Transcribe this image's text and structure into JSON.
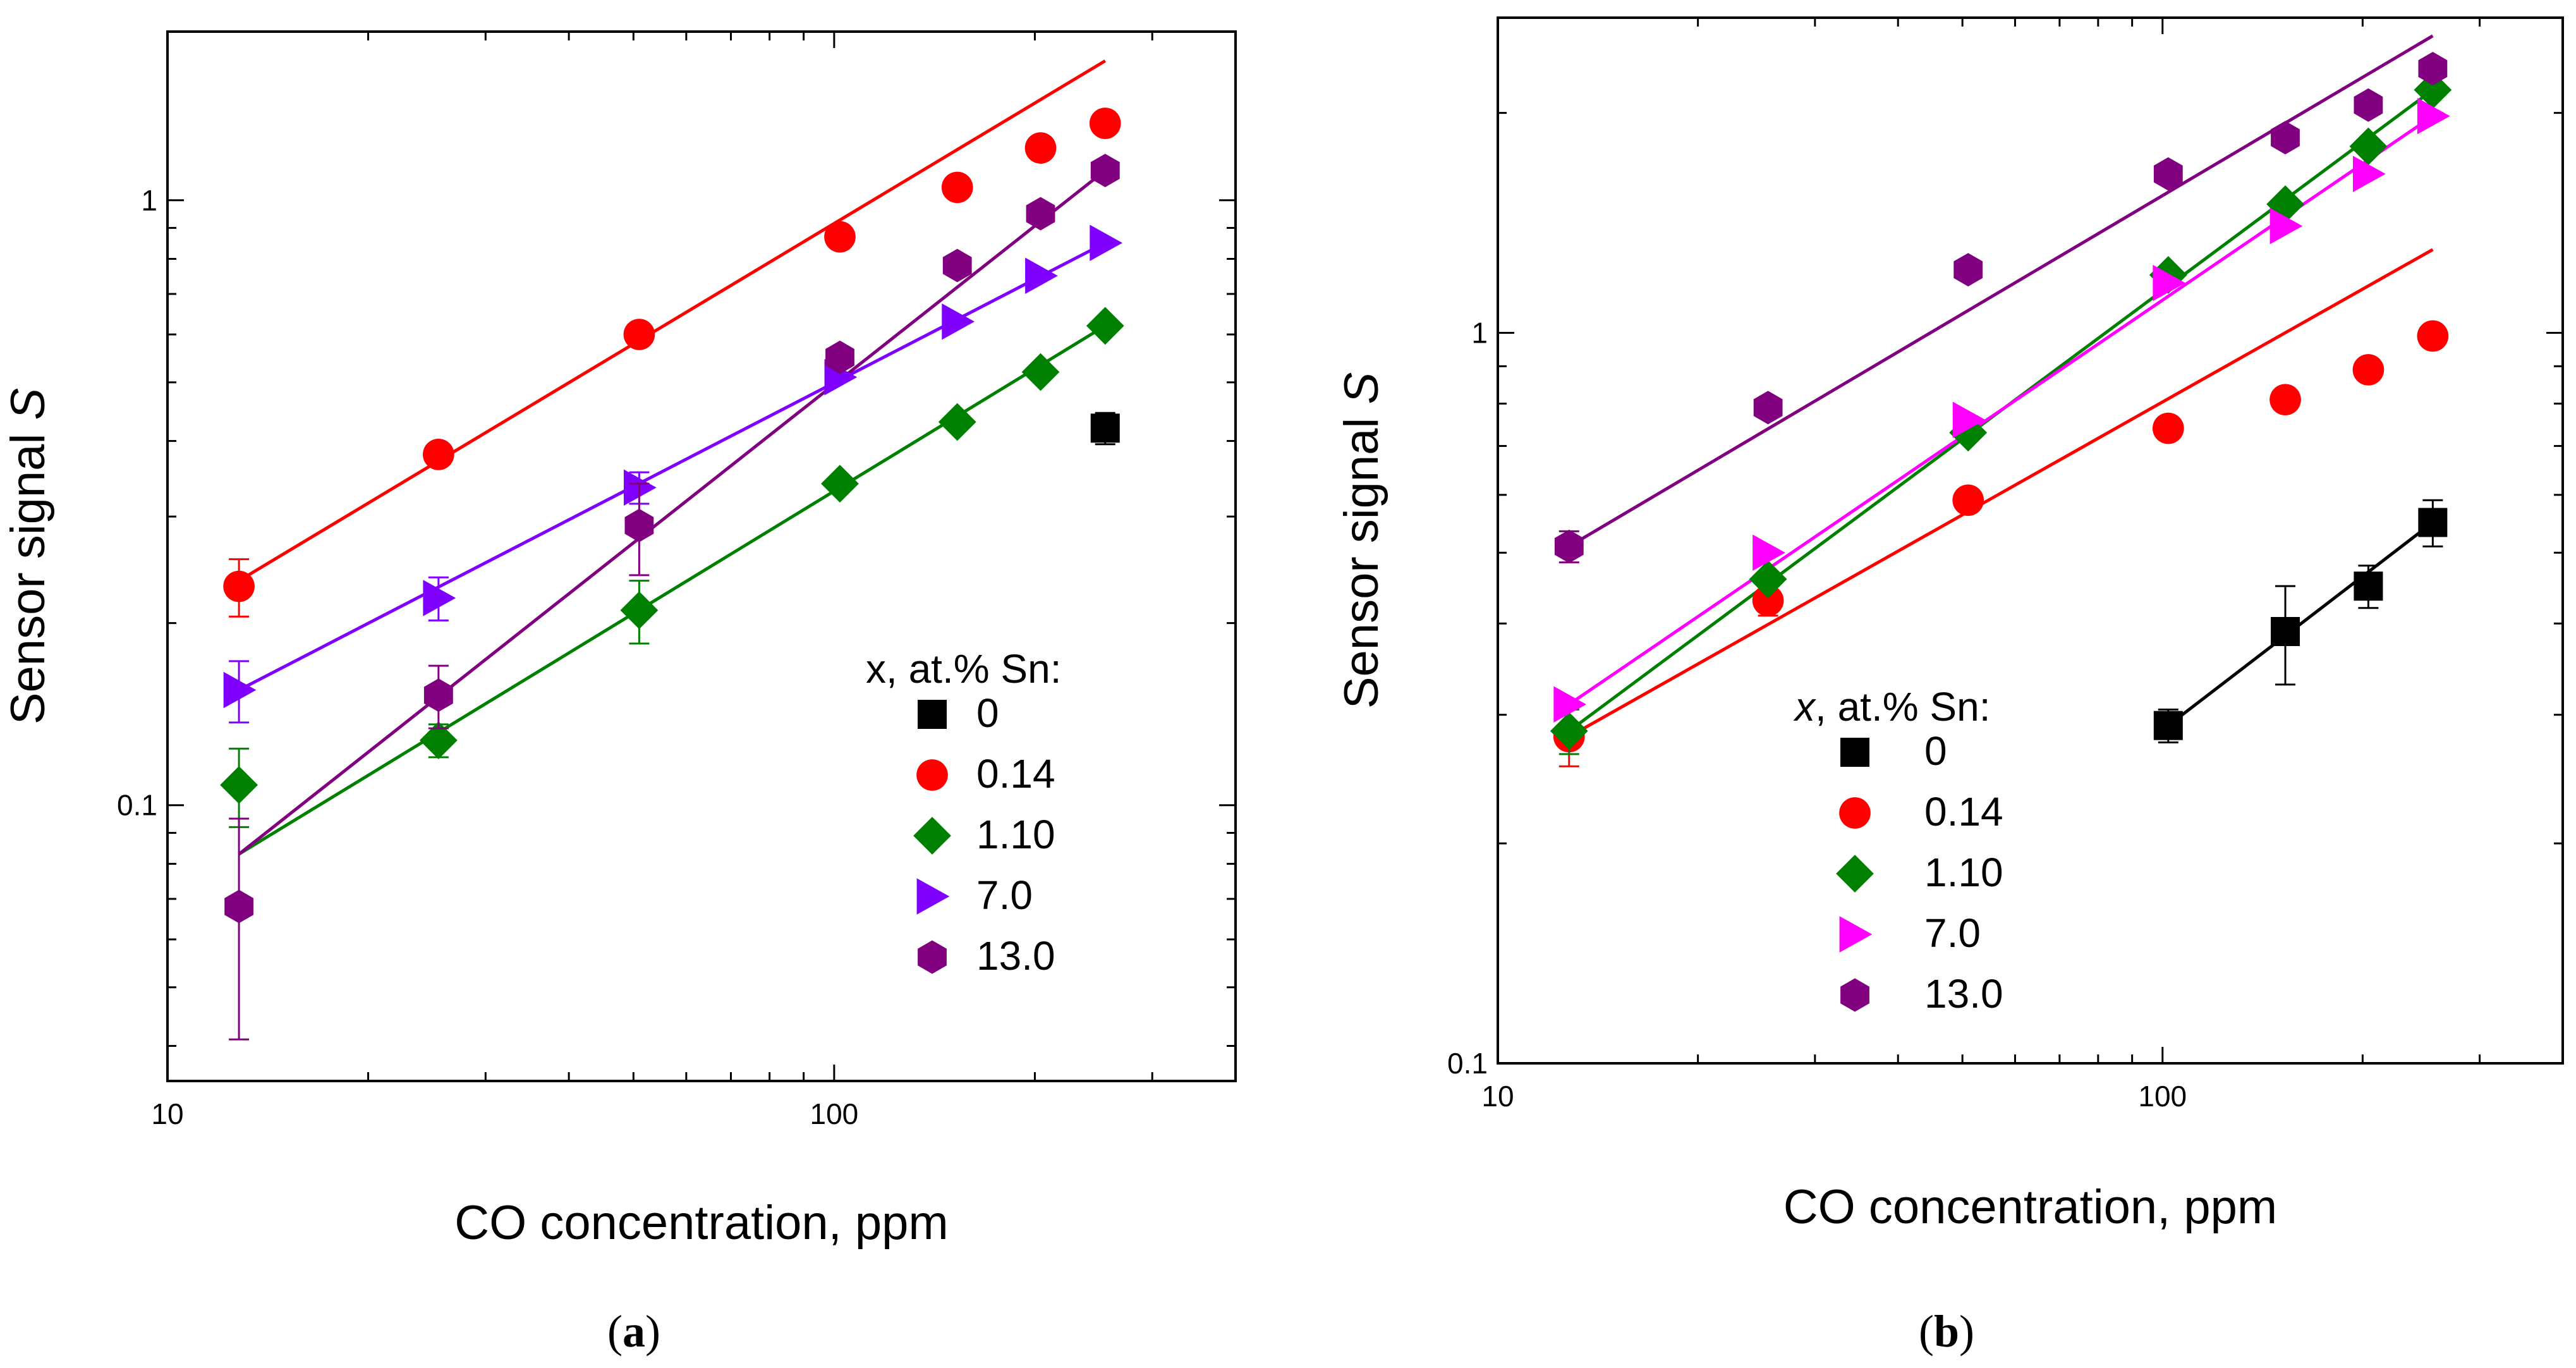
{
  "chart_data": [
    {
      "type": "scatter",
      "panel_label": "a",
      "caption": {
        "open": "(",
        "label": "a",
        "close": ")"
      },
      "xlabel": "CO concentration, ppm",
      "ylabel": {
        "text": "Sensor signal ",
        "italic": "S"
      },
      "xscale": "log",
      "yscale": "log",
      "xlim": [
        10,
        400
      ],
      "ylim": [
        0.035,
        1.9
      ],
      "xticks": [
        {
          "value": 10,
          "label": "10"
        },
        {
          "value": 100,
          "label": "100"
        }
      ],
      "yticks": [
        {
          "value": 0.1,
          "label": "0.1"
        },
        {
          "value": 1,
          "label": "1"
        }
      ],
      "legend": {
        "title": "x, at.% Sn:",
        "title_italic_part": "",
        "placement": "lower-right"
      },
      "series": [
        {
          "name": "0",
          "color": "#000000",
          "marker": "square",
          "points": [
            {
              "x": 255,
              "y": 0.42,
              "err": 0.025
            }
          ],
          "fit": null
        },
        {
          "name": "0.14",
          "color": "#ff0000",
          "marker": "circle",
          "points": [
            {
              "x": 12.8,
              "y": 0.23,
              "err": 0.025
            },
            {
              "x": 25.5,
              "y": 0.38
            },
            {
              "x": 51,
              "y": 0.6
            },
            {
              "x": 102,
              "y": 0.87
            },
            {
              "x": 153,
              "y": 1.05
            },
            {
              "x": 204,
              "y": 1.22
            },
            {
              "x": 255,
              "y": 1.34
            }
          ],
          "fit": {
            "x1": 12.8,
            "y1": 0.235,
            "x2": 255,
            "y2": 1.7
          }
        },
        {
          "name": "1.10",
          "color": "#008000",
          "marker": "diamond",
          "points": [
            {
              "x": 12.8,
              "y": 0.108,
              "err": 0.016
            },
            {
              "x": 25.5,
              "y": 0.128,
              "err": 0.008
            },
            {
              "x": 51,
              "y": 0.21,
              "err": 0.025
            },
            {
              "x": 102,
              "y": 0.34
            },
            {
              "x": 153,
              "y": 0.43
            },
            {
              "x": 204,
              "y": 0.52
            },
            {
              "x": 255,
              "y": 0.62
            }
          ],
          "fit": {
            "x1": 12.8,
            "y1": 0.083,
            "x2": 255,
            "y2": 0.62
          }
        },
        {
          "name": "7.0",
          "color": "#8000ff",
          "marker": "triangle-right",
          "points": [
            {
              "x": 12.8,
              "y": 0.155,
              "err": 0.018
            },
            {
              "x": 25.5,
              "y": 0.22,
              "err": 0.018
            },
            {
              "x": 51,
              "y": 0.335,
              "err": 0.02
            },
            {
              "x": 102,
              "y": 0.51
            },
            {
              "x": 153,
              "y": 0.63
            },
            {
              "x": 204,
              "y": 0.75
            },
            {
              "x": 255,
              "y": 0.85
            }
          ],
          "fit": {
            "x1": 12.8,
            "y1": 0.155,
            "x2": 255,
            "y2": 0.85
          }
        },
        {
          "name": "13.0",
          "color": "#800080",
          "marker": "hexagon",
          "points": [
            {
              "x": 12.8,
              "y": 0.068,
              "err": 0.027
            },
            {
              "x": 25.5,
              "y": 0.152,
              "err": 0.018
            },
            {
              "x": 51,
              "y": 0.29,
              "err": 0.05
            },
            {
              "x": 102,
              "y": 0.55
            },
            {
              "x": 153,
              "y": 0.78
            },
            {
              "x": 204,
              "y": 0.95
            },
            {
              "x": 255,
              "y": 1.12
            }
          ],
          "fit": {
            "x1": 12.8,
            "y1": 0.083,
            "x2": 255,
            "y2": 1.12
          }
        }
      ]
    },
    {
      "type": "scatter",
      "panel_label": "b",
      "caption": {
        "open": "(",
        "label": "b",
        "close": ")"
      },
      "xlabel": "CO concentration, ppm",
      "ylabel": {
        "text": "Sensor signal ",
        "italic": "S"
      },
      "xscale": "log",
      "yscale": "log",
      "xlim": [
        10,
        400
      ],
      "ylim": [
        0.1,
        2.7
      ],
      "xticks": [
        {
          "value": 10,
          "label": "10"
        },
        {
          "value": 100,
          "label": "100"
        }
      ],
      "yticks": [
        {
          "value": 0.1,
          "label": "0.1"
        },
        {
          "value": 1,
          "label": "1"
        }
      ],
      "legend": {
        "title": ", at.% Sn:",
        "title_italic_part": "x",
        "placement": "lower-right"
      },
      "series": [
        {
          "name": "0",
          "color": "#000000",
          "marker": "square",
          "points": [
            {
              "x": 102,
              "y": 0.29,
              "err": 0.015
            },
            {
              "x": 153,
              "y": 0.39,
              "err": 0.06
            },
            {
              "x": 204,
              "y": 0.45,
              "err": 0.03
            },
            {
              "x": 255,
              "y": 0.55,
              "err": 0.04
            }
          ],
          "fit": {
            "x1": 102,
            "y1": 0.29,
            "x2": 255,
            "y2": 0.55
          }
        },
        {
          "name": "0.14",
          "color": "#ff0000",
          "marker": "circle",
          "points": [
            {
              "x": 12.8,
              "y": 0.28,
              "err": 0.025
            },
            {
              "x": 25.5,
              "y": 0.43,
              "err": 0.02
            },
            {
              "x": 51,
              "y": 0.59
            },
            {
              "x": 102,
              "y": 0.74
            },
            {
              "x": 153,
              "y": 0.81
            },
            {
              "x": 204,
              "y": 0.89
            },
            {
              "x": 255,
              "y": 0.99
            }
          ],
          "fit": {
            "x1": 12.8,
            "y1": 0.28,
            "x2": 255,
            "y2": 1.3
          }
        },
        {
          "name": "1.10",
          "color": "#008000",
          "marker": "diamond",
          "points": [
            {
              "x": 12.8,
              "y": 0.285,
              "err": 0.02
            },
            {
              "x": 25.5,
              "y": 0.46
            },
            {
              "x": 51,
              "y": 0.73
            },
            {
              "x": 102,
              "y": 1.2
            },
            {
              "x": 153,
              "y": 1.5
            },
            {
              "x": 204,
              "y": 1.8
            },
            {
              "x": 255,
              "y": 2.15
            }
          ],
          "fit": {
            "x1": 12.8,
            "y1": 0.285,
            "x2": 255,
            "y2": 2.15
          }
        },
        {
          "name": "7.0",
          "color": "#ff00ff",
          "marker": "triangle-right",
          "points": [
            {
              "x": 12.8,
              "y": 0.31
            },
            {
              "x": 25.5,
              "y": 0.5
            },
            {
              "x": 51,
              "y": 0.76
            },
            {
              "x": 102,
              "y": 1.17
            },
            {
              "x": 153,
              "y": 1.4
            },
            {
              "x": 204,
              "y": 1.65
            },
            {
              "x": 255,
              "y": 1.98
            }
          ],
          "fit": {
            "x1": 12.8,
            "y1": 0.31,
            "x2": 255,
            "y2": 1.98
          }
        },
        {
          "name": "13.0",
          "color": "#800080",
          "marker": "hexagon",
          "points": [
            {
              "x": 12.8,
              "y": 0.51,
              "err": 0.025
            },
            {
              "x": 25.5,
              "y": 0.79
            },
            {
              "x": 51,
              "y": 1.22
            },
            {
              "x": 102,
              "y": 1.65
            },
            {
              "x": 153,
              "y": 1.85
            },
            {
              "x": 204,
              "y": 2.05
            },
            {
              "x": 255,
              "y": 2.3
            }
          ],
          "fit": {
            "x1": 12.8,
            "y1": 0.51,
            "x2": 255,
            "y2": 2.55
          }
        }
      ]
    }
  ]
}
